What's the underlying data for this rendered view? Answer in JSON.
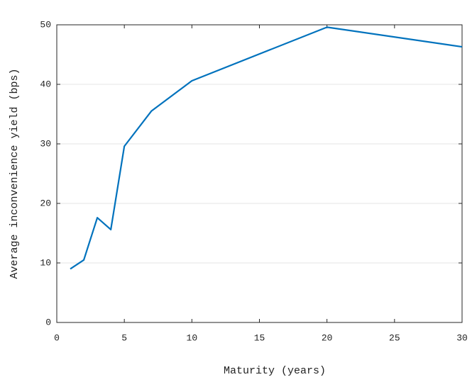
{
  "chart_data": {
    "type": "line",
    "x": [
      1,
      2,
      3,
      4,
      5,
      7,
      10,
      20,
      30
    ],
    "values": [
      9.0,
      10.5,
      17.6,
      15.6,
      29.6,
      35.5,
      40.6,
      49.6,
      46.3
    ],
    "color": "#0072bd",
    "xlabel": "Maturity (years)",
    "ylabel": "Average inconvenience yield (bps)",
    "xlim": [
      0,
      30
    ],
    "xticks": [
      0,
      5,
      10,
      15,
      20,
      25,
      30
    ],
    "ylim": [
      0,
      50
    ],
    "yticks": [
      0,
      10,
      20,
      30,
      40,
      50
    ],
    "grid": "y"
  }
}
